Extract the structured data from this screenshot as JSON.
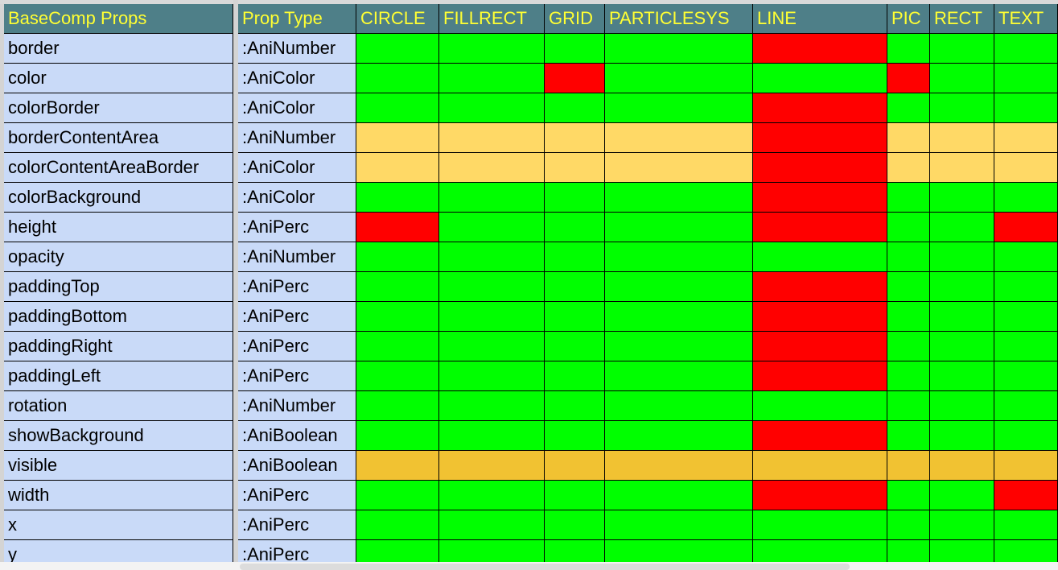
{
  "colors": {
    "header_bg": "#4e7f88",
    "header_text": "#ffff33",
    "label_bg": "#c9daf8",
    "supported": "#00ff00",
    "unsupported": "#ff0000",
    "partial": "#ffd966",
    "partial_dark": "#f1c232"
  },
  "table": {
    "headers": [
      "BaseComp Props",
      "Prop Type",
      "CIRCLE",
      "FILLRECT",
      "GRID",
      "PARTICLESYS",
      "LINE",
      "PIC",
      "RECT",
      "TEXT"
    ],
    "rows": [
      {
        "prop": "border",
        "type": ":AniNumber",
        "cells": [
          "g",
          "g",
          "g",
          "g",
          "r",
          "g",
          "g",
          "g"
        ]
      },
      {
        "prop": "color",
        "type": ":AniColor",
        "cells": [
          "g",
          "g",
          "r",
          "g",
          "g",
          "r",
          "g",
          "g"
        ]
      },
      {
        "prop": "colorBorder",
        "type": ":AniColor",
        "cells": [
          "g",
          "g",
          "g",
          "g",
          "r",
          "g",
          "g",
          "g"
        ]
      },
      {
        "prop": "borderContentArea",
        "type": ":AniNumber",
        "cells": [
          "y",
          "y",
          "y",
          "y",
          "r",
          "y",
          "y",
          "y"
        ]
      },
      {
        "prop": "colorContentAreaBorder",
        "type": ":AniColor",
        "cells": [
          "y",
          "y",
          "y",
          "y",
          "r",
          "y",
          "y",
          "y"
        ]
      },
      {
        "prop": "colorBackground",
        "type": ":AniColor",
        "cells": [
          "g",
          "g",
          "g",
          "g",
          "r",
          "g",
          "g",
          "g"
        ]
      },
      {
        "prop": "height",
        "type": ":AniPerc",
        "cells": [
          "r",
          "g",
          "g",
          "g",
          "r",
          "g",
          "g",
          "r"
        ]
      },
      {
        "prop": "opacity",
        "type": ":AniNumber",
        "cells": [
          "g",
          "g",
          "g",
          "g",
          "g",
          "g",
          "g",
          "g"
        ]
      },
      {
        "prop": "paddingTop",
        "type": ":AniPerc",
        "cells": [
          "g",
          "g",
          "g",
          "g",
          "r",
          "g",
          "g",
          "g"
        ]
      },
      {
        "prop": "paddingBottom",
        "type": ":AniPerc",
        "cells": [
          "g",
          "g",
          "g",
          "g",
          "r",
          "g",
          "g",
          "g"
        ]
      },
      {
        "prop": "paddingRight",
        "type": ":AniPerc",
        "cells": [
          "g",
          "g",
          "g",
          "g",
          "r",
          "g",
          "g",
          "g"
        ]
      },
      {
        "prop": "paddingLeft",
        "type": ":AniPerc",
        "cells": [
          "g",
          "g",
          "g",
          "g",
          "r",
          "g",
          "g",
          "g"
        ]
      },
      {
        "prop": "rotation",
        "type": ":AniNumber",
        "cells": [
          "g",
          "g",
          "g",
          "g",
          "g",
          "g",
          "g",
          "g"
        ]
      },
      {
        "prop": "showBackground",
        "type": ":AniBoolean",
        "cells": [
          "g",
          "g",
          "g",
          "g",
          "r",
          "g",
          "g",
          "g"
        ]
      },
      {
        "prop": "visible",
        "type": ":AniBoolean",
        "cells": [
          "o",
          "o",
          "o",
          "o",
          "o",
          "o",
          "o",
          "o"
        ]
      },
      {
        "prop": "width",
        "type": ":AniPerc",
        "cells": [
          "g",
          "g",
          "g",
          "g",
          "r",
          "g",
          "g",
          "r"
        ]
      },
      {
        "prop": "x",
        "type": ":AniPerc",
        "cells": [
          "g",
          "g",
          "g",
          "g",
          "g",
          "g",
          "g",
          "g"
        ]
      },
      {
        "prop": "y",
        "type": ":AniPerc",
        "cells": [
          "g",
          "g",
          "g",
          "g",
          "g",
          "g",
          "g",
          "g"
        ]
      }
    ]
  }
}
